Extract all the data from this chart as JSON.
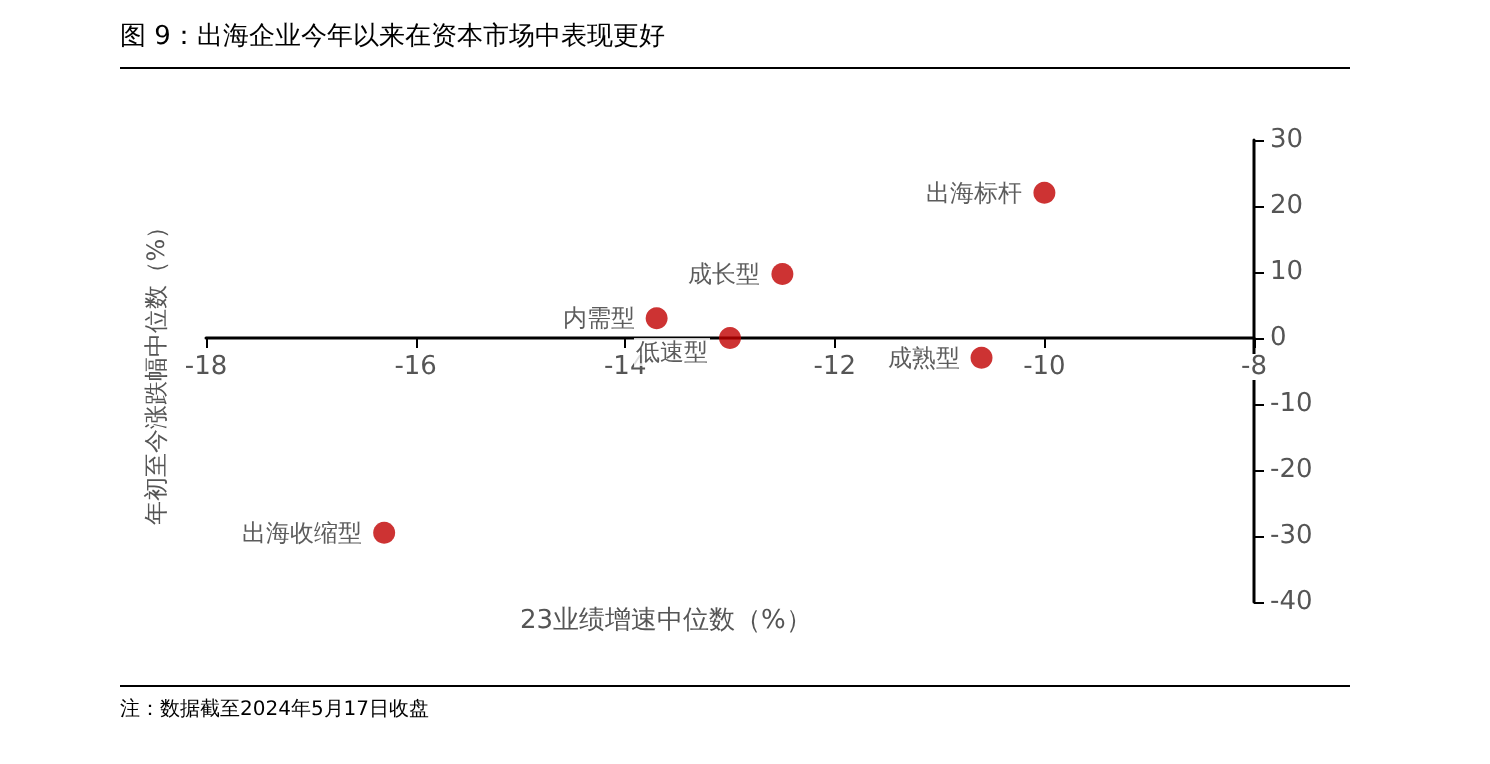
{
  "chart_data": {
    "type": "scatter",
    "title": "图 9：出海企业今年以来在资本市场中表现更好",
    "xlabel": "23业绩增速中位数（%）",
    "ylabel": "年初至今涨跌幅中位数（%）",
    "x": [
      -10.0,
      -12.5,
      -13.7,
      -13.0,
      -10.6,
      -16.3
    ],
    "series": [
      {
        "color": "#c00000",
        "values": [
          22,
          9.7,
          3,
          0,
          -3,
          -29.5
        ]
      }
    ],
    "xlim": [
      -18,
      -8
    ],
    "xticks": [
      -18,
      -16,
      -14,
      -12,
      -10,
      -8
    ],
    "ylim": [
      -40,
      30
    ],
    "yticks": [
      -40,
      -30,
      -20,
      -10,
      0,
      10,
      20,
      30
    ],
    "marker": "circle",
    "annotations": [
      {
        "text": "出海标杆",
        "x": -10.0,
        "y": 22
      },
      {
        "text": "成长型",
        "x": -12.5,
        "y": 9.7
      },
      {
        "text": "内需型",
        "x": -13.7,
        "y": 3
      },
      {
        "text": "低速型",
        "x": -13.0,
        "y": 0
      },
      {
        "text": "成熟型",
        "x": -10.6,
        "y": -3
      },
      {
        "text": "出海收缩型",
        "x": -16.3,
        "y": -29.5
      },
      "注：数据截至2024年5月17日收盘"
    ]
  }
}
